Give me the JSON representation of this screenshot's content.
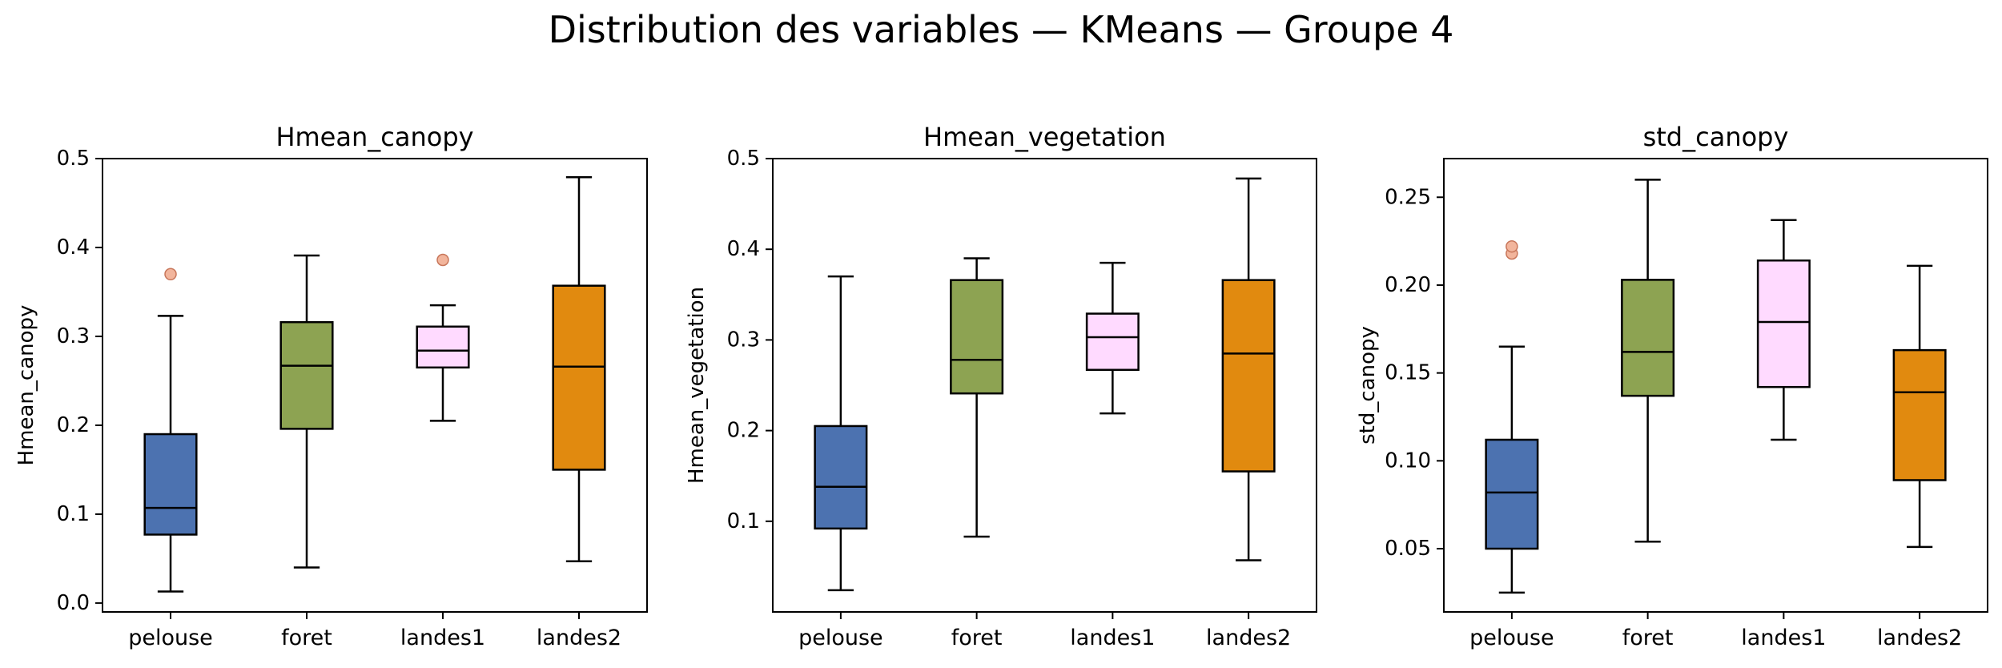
{
  "figure": {
    "title": "Distribution des variables — KMeans — Groupe 4"
  },
  "chart_data": [
    {
      "type": "box",
      "title": "Hmean_canopy",
      "xlabel": "",
      "ylabel": "Hmean_canopy",
      "categories": [
        "pelouse",
        "foret",
        "landes1",
        "landes2"
      ],
      "colors": [
        "#4c72b0",
        "#8da352",
        "#ffdaff",
        "#e18a0f"
      ],
      "ylim": [
        -0.01,
        0.5
      ],
      "yticks": [
        "0.0",
        "0.1",
        "0.2",
        "0.3",
        "0.4",
        "0.5"
      ],
      "grid": false,
      "boxes": [
        {
          "whislo": 0.013,
          "q1": 0.077,
          "med": 0.107,
          "q3": 0.19,
          "whishi": 0.323,
          "fliers": [
            0.37
          ]
        },
        {
          "whislo": 0.04,
          "q1": 0.196,
          "med": 0.267,
          "q3": 0.316,
          "whishi": 0.391,
          "fliers": []
        },
        {
          "whislo": 0.205,
          "q1": 0.265,
          "med": 0.284,
          "q3": 0.311,
          "whishi": 0.335,
          "fliers": [
            0.386
          ]
        },
        {
          "whislo": 0.047,
          "q1": 0.15,
          "med": 0.266,
          "q3": 0.357,
          "whishi": 0.479,
          "fliers": []
        }
      ]
    },
    {
      "type": "box",
      "title": "Hmean_vegetation",
      "xlabel": "",
      "ylabel": "Hmean_vegetation",
      "categories": [
        "pelouse",
        "foret",
        "landes1",
        "landes2"
      ],
      "colors": [
        "#4c72b0",
        "#8da352",
        "#ffdaff",
        "#e18a0f"
      ],
      "ylim": [
        0.0,
        0.5
      ],
      "yticks": [
        "0.1",
        "0.2",
        "0.3",
        "0.4",
        "0.5"
      ],
      "grid": false,
      "boxes": [
        {
          "whislo": 0.024,
          "q1": 0.092,
          "med": 0.138,
          "q3": 0.205,
          "whishi": 0.37,
          "fliers": []
        },
        {
          "whislo": 0.083,
          "q1": 0.241,
          "med": 0.278,
          "q3": 0.366,
          "whishi": 0.39,
          "fliers": []
        },
        {
          "whislo": 0.219,
          "q1": 0.267,
          "med": 0.303,
          "q3": 0.329,
          "whishi": 0.385,
          "fliers": []
        },
        {
          "whislo": 0.057,
          "q1": 0.155,
          "med": 0.285,
          "q3": 0.366,
          "whishi": 0.478,
          "fliers": []
        }
      ]
    },
    {
      "type": "box",
      "title": "std_canopy",
      "xlabel": "",
      "ylabel": "std_canopy",
      "categories": [
        "pelouse",
        "foret",
        "landes1",
        "landes2"
      ],
      "colors": [
        "#4c72b0",
        "#8da352",
        "#ffdaff",
        "#e18a0f"
      ],
      "ylim": [
        0.014,
        0.272
      ],
      "yticks": [
        "0.05",
        "0.10",
        "0.15",
        "0.20",
        "0.25"
      ],
      "grid": false,
      "boxes": [
        {
          "whislo": 0.025,
          "q1": 0.05,
          "med": 0.082,
          "q3": 0.112,
          "whishi": 0.165,
          "fliers": [
            0.218,
            0.222
          ]
        },
        {
          "whislo": 0.054,
          "q1": 0.137,
          "med": 0.162,
          "q3": 0.203,
          "whishi": 0.26,
          "fliers": []
        },
        {
          "whislo": 0.112,
          "q1": 0.142,
          "med": 0.179,
          "q3": 0.214,
          "whishi": 0.237,
          "fliers": []
        },
        {
          "whislo": 0.051,
          "q1": 0.089,
          "med": 0.139,
          "q3": 0.163,
          "whishi": 0.211,
          "fliers": []
        }
      ]
    }
  ]
}
